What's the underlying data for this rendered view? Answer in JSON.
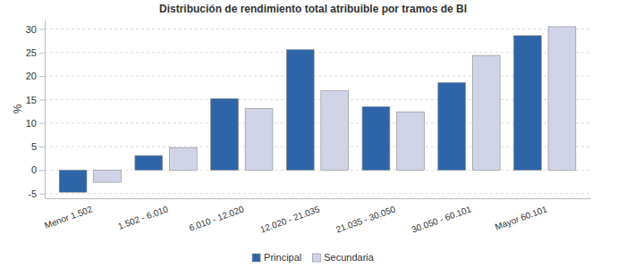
{
  "chart_data": {
    "type": "bar",
    "title": "Distribución de rendimiento total atribuible por tramos de BI",
    "y_label": "%",
    "categories": [
      "Menor 1.502",
      "1.502 - 6.010",
      "6.010 - 12.020",
      "12.020 - 21.035",
      "21.035 - 30.050",
      "30.050 - 60.101",
      "Mayor 60.101"
    ],
    "series": [
      {
        "name": "Principal",
        "color": "#2e64a8",
        "values": [
          -4.7,
          3.1,
          15.2,
          25.6,
          13.5,
          18.6,
          28.6
        ]
      },
      {
        "name": "Secundaria",
        "color": "#d0d4e6",
        "values": [
          -2.6,
          4.8,
          13.1,
          16.9,
          12.4,
          24.4,
          30.5
        ]
      }
    ],
    "ylim": [
      -6,
      32
    ],
    "yticks": [
      -5,
      0,
      5,
      10,
      15,
      20,
      25,
      30
    ],
    "grid": true,
    "legend": "bottom"
  }
}
